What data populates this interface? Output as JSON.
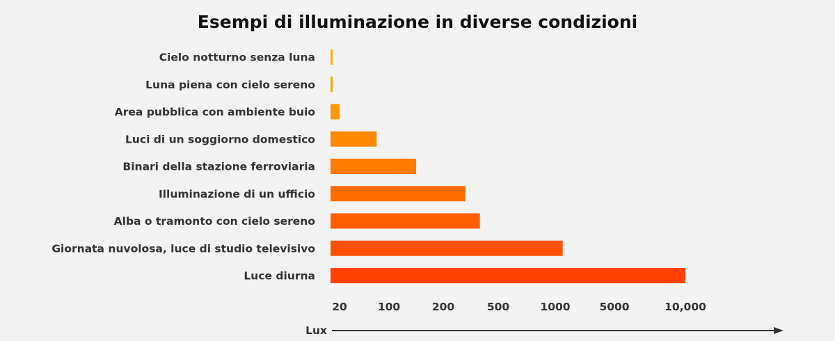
{
  "chart_data": {
    "type": "bar",
    "orientation": "horizontal",
    "title": "Esempi di illuminazione in diverse condizioni",
    "xlabel": "Lux",
    "ylabel": "",
    "categories": [
      "Cielo notturno senza luna",
      "Luna piena con cielo sereno",
      "Area pubblica con ambiente buio",
      "Luci di un soggiorno domestico",
      "Binari della stazione ferroviaria",
      "Illuminazione di un ufficio",
      "Alba o tramonto con cielo sereno",
      "Giornata nuvolosa, luce di studio televisivo",
      "Luce diurna"
    ],
    "x_tick_labels": [
      "20",
      "100",
      "200",
      "500",
      "1000",
      "5000",
      "10,000"
    ],
    "x_tick_values": [
      20,
      100,
      200,
      500,
      1000,
      5000,
      10000
    ],
    "values": [
      0.0001,
      0.27,
      20,
      80,
      150,
      320,
      400,
      1500,
      10000
    ],
    "grid": false,
    "legend": "none",
    "colors": {
      "bar_start": "#ffb200",
      "bar_end": "#ff4200",
      "text": "#333333",
      "axis": "#333333",
      "background": "#f3f3f3"
    }
  }
}
